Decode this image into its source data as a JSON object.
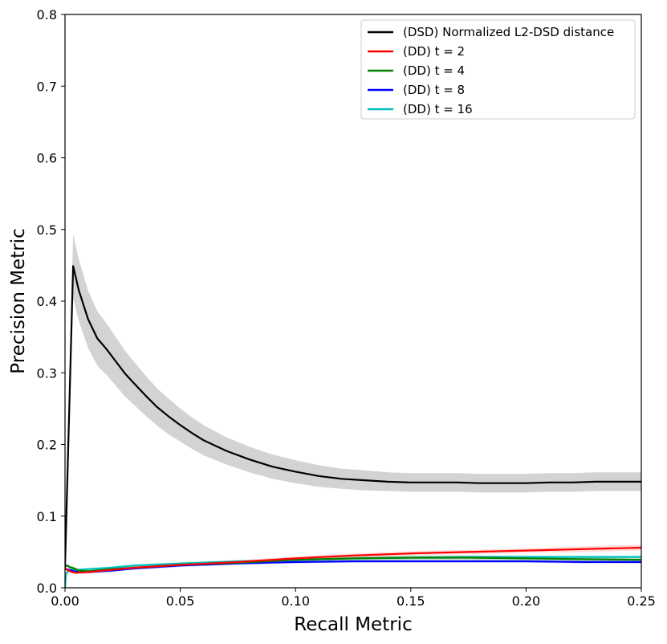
{
  "chart_data": {
    "type": "line",
    "title": "",
    "xlabel": "Recall Metric",
    "ylabel": "Precision Metric",
    "xlim": [
      0.0,
      0.25
    ],
    "ylim": [
      0.0,
      0.8
    ],
    "xticks": [
      0.0,
      0.05,
      0.1,
      0.15,
      0.2,
      0.25
    ],
    "xtick_labels": [
      "0.00",
      "0.05",
      "0.10",
      "0.15",
      "0.20",
      "0.25"
    ],
    "yticks": [
      0.0,
      0.1,
      0.2,
      0.3,
      0.4,
      0.5,
      0.6,
      0.7,
      0.8
    ],
    "ytick_labels": [
      "0.0",
      "0.1",
      "0.2",
      "0.3",
      "0.4",
      "0.5",
      "0.6",
      "0.7",
      "0.8"
    ],
    "grid": false,
    "legend_position": "top-right",
    "series": [
      {
        "name": "(DSD) Normalized L2-DSD distance",
        "color": "#000000",
        "band_color": "#808080",
        "x": [
          0.0,
          0.0035,
          0.006,
          0.01,
          0.014,
          0.018,
          0.022,
          0.026,
          0.03,
          0.035,
          0.04,
          0.045,
          0.05,
          0.055,
          0.06,
          0.07,
          0.08,
          0.09,
          0.1,
          0.11,
          0.12,
          0.13,
          0.14,
          0.15,
          0.16,
          0.17,
          0.18,
          0.19,
          0.2,
          0.21,
          0.22,
          0.23,
          0.24,
          0.25
        ],
        "y": [
          0.03,
          0.449,
          0.415,
          0.375,
          0.348,
          0.333,
          0.316,
          0.299,
          0.285,
          0.268,
          0.252,
          0.239,
          0.227,
          0.216,
          0.206,
          0.191,
          0.179,
          0.169,
          0.162,
          0.156,
          0.152,
          0.15,
          0.148,
          0.147,
          0.147,
          0.147,
          0.146,
          0.146,
          0.146,
          0.147,
          0.147,
          0.148,
          0.148,
          0.148
        ],
        "spread": [
          0.0,
          0.045,
          0.043,
          0.04,
          0.038,
          0.036,
          0.034,
          0.032,
          0.03,
          0.028,
          0.026,
          0.025,
          0.023,
          0.022,
          0.021,
          0.019,
          0.018,
          0.017,
          0.016,
          0.015,
          0.014,
          0.014,
          0.013,
          0.013,
          0.013,
          0.013,
          0.013,
          0.013,
          0.013,
          0.013,
          0.013,
          0.013,
          0.013,
          0.013
        ]
      },
      {
        "name": "(DD) t = 2",
        "color": "#ff0000",
        "band_color": "#ff9999",
        "x": [
          0.0,
          0.001,
          0.003,
          0.005,
          0.01,
          0.02,
          0.03,
          0.05,
          0.075,
          0.1,
          0.125,
          0.15,
          0.175,
          0.2,
          0.225,
          0.25
        ],
        "y": [
          0.028,
          0.025,
          0.022,
          0.021,
          0.022,
          0.025,
          0.028,
          0.032,
          0.036,
          0.041,
          0.045,
          0.048,
          0.05,
          0.052,
          0.054,
          0.056
        ],
        "spread": [
          0.002,
          0.002,
          0.002,
          0.002,
          0.002,
          0.002,
          0.002,
          0.002,
          0.002,
          0.003,
          0.003,
          0.003,
          0.003,
          0.003,
          0.004,
          0.004
        ]
      },
      {
        "name": "(DD) t = 4",
        "color": "#008000",
        "band_color": "#66b366",
        "x": [
          0.0,
          0.001,
          0.002,
          0.004,
          0.006,
          0.01,
          0.02,
          0.03,
          0.05,
          0.075,
          0.1,
          0.125,
          0.15,
          0.175,
          0.2,
          0.225,
          0.25
        ],
        "y": [
          0.03,
          0.031,
          0.029,
          0.027,
          0.024,
          0.023,
          0.026,
          0.028,
          0.032,
          0.035,
          0.039,
          0.041,
          0.042,
          0.042,
          0.041,
          0.04,
          0.039
        ],
        "spread": [
          0.002,
          0.002,
          0.002,
          0.002,
          0.002,
          0.002,
          0.002,
          0.002,
          0.002,
          0.002,
          0.003,
          0.003,
          0.003,
          0.003,
          0.003,
          0.003,
          0.003
        ]
      },
      {
        "name": "(DD) t = 8",
        "color": "#0000ff",
        "band_color": "#8080ff",
        "x": [
          0.0,
          0.002,
          0.004,
          0.006,
          0.01,
          0.02,
          0.03,
          0.05,
          0.075,
          0.1,
          0.125,
          0.15,
          0.175,
          0.2,
          0.225,
          0.25
        ],
        "y": [
          0.026,
          0.025,
          0.023,
          0.022,
          0.022,
          0.024,
          0.027,
          0.031,
          0.034,
          0.036,
          0.037,
          0.037,
          0.037,
          0.037,
          0.036,
          0.036
        ],
        "spread": [
          0.002,
          0.002,
          0.002,
          0.002,
          0.002,
          0.002,
          0.002,
          0.002,
          0.002,
          0.002,
          0.002,
          0.002,
          0.002,
          0.002,
          0.002,
          0.002
        ]
      },
      {
        "name": "(DD) t = 16",
        "color": "#00bfbf",
        "band_color": "#7fdfdf",
        "x": [
          0.0,
          0.0005,
          0.002,
          0.005,
          0.01,
          0.02,
          0.03,
          0.05,
          0.075,
          0.1,
          0.125,
          0.15,
          0.175,
          0.2,
          0.225,
          0.25
        ],
        "y": [
          0.0,
          0.02,
          0.025,
          0.025,
          0.026,
          0.028,
          0.031,
          0.034,
          0.037,
          0.039,
          0.041,
          0.042,
          0.043,
          0.043,
          0.043,
          0.043
        ],
        "spread": [
          0.002,
          0.002,
          0.002,
          0.002,
          0.002,
          0.002,
          0.002,
          0.002,
          0.002,
          0.002,
          0.002,
          0.002,
          0.002,
          0.002,
          0.002,
          0.002
        ]
      }
    ]
  }
}
